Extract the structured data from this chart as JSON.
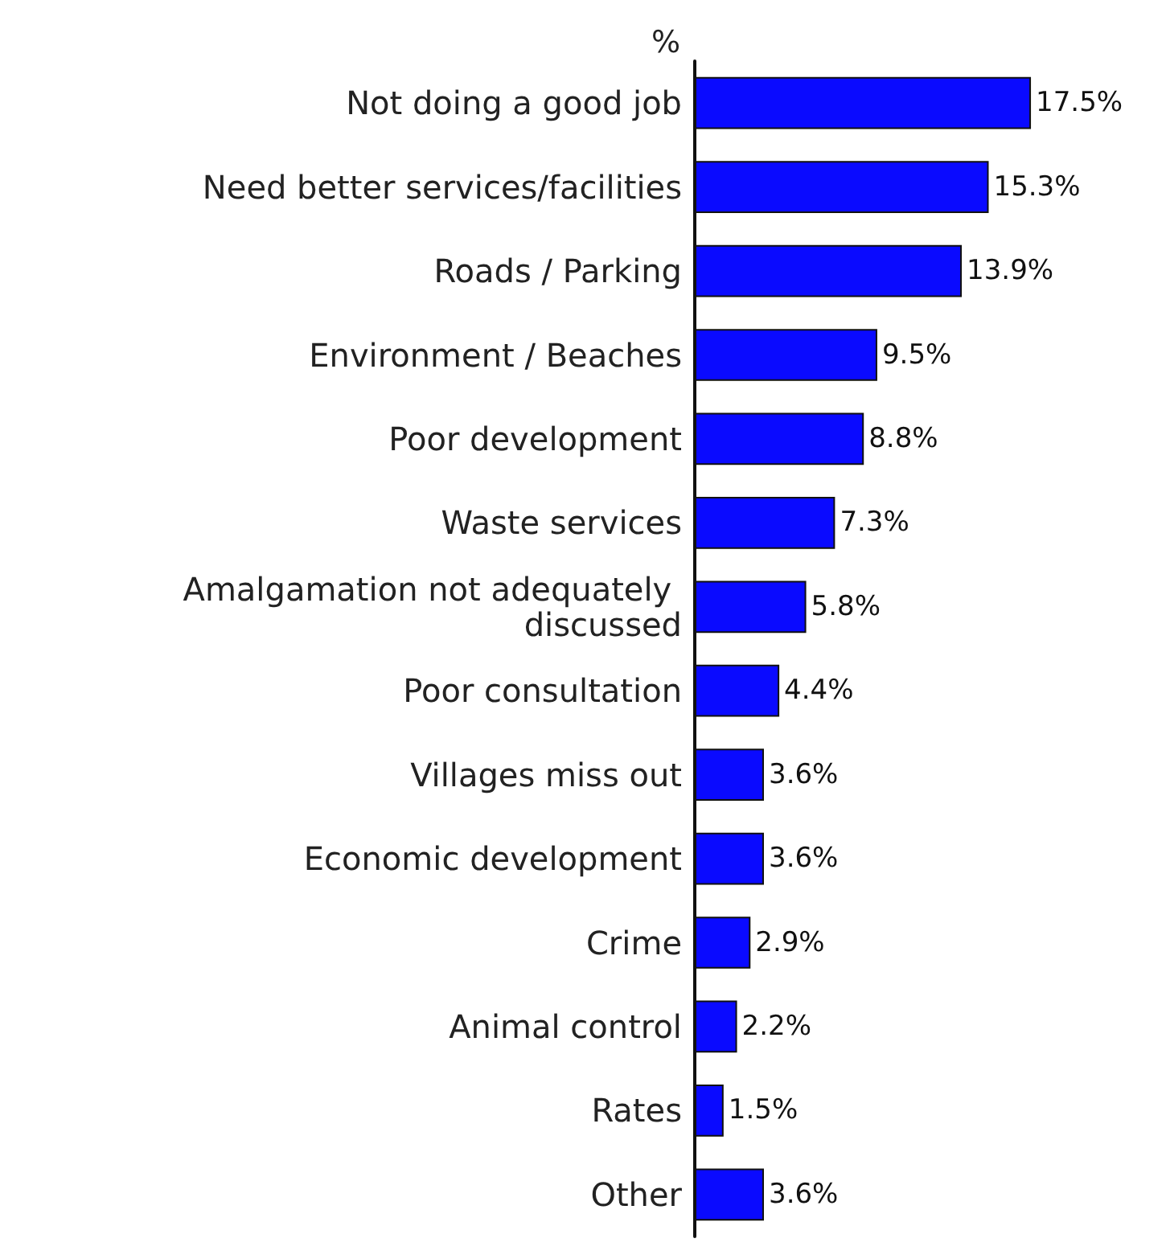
{
  "chart_data": {
    "type": "bar",
    "orientation": "horizontal",
    "xlabel": "%",
    "categories": [
      "Not doing a good job",
      "Need better services/facilities",
      "Roads / Parking",
      "Environment / Beaches",
      "Poor development",
      "Waste services",
      "Amalgamation not adequately discussed",
      "Poor consultation",
      "Villages miss out",
      "Economic development",
      "Crime",
      "Animal control",
      "Rates",
      "Other"
    ],
    "values": [
      17.5,
      15.3,
      13.9,
      9.5,
      8.8,
      7.3,
      5.8,
      4.4,
      3.6,
      3.6,
      2.9,
      2.2,
      1.5,
      3.6
    ],
    "value_labels": [
      "17.5%",
      "15.3%",
      "13.9%",
      "9.5%",
      "8.8%",
      "7.3%",
      "5.8%",
      "4.4%",
      "3.6%",
      "3.6%",
      "2.9%",
      "2.2%",
      "1.5%",
      "3.6%"
    ],
    "color": "#0a0aff",
    "grid": false
  }
}
